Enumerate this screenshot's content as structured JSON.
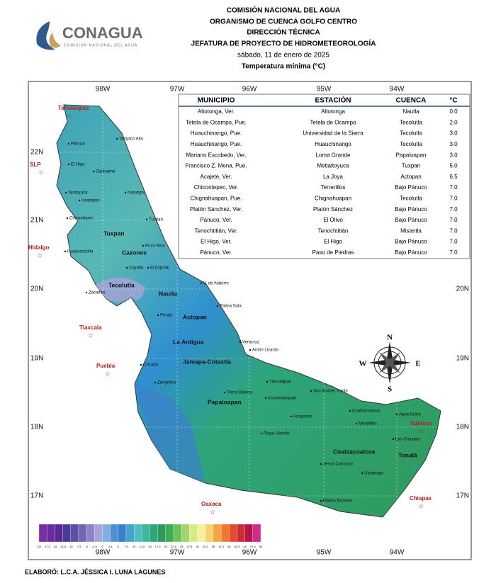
{
  "header": {
    "logo": "CONAGUA",
    "logo_sub": "COMISION NACIONAL DEL AGUA",
    "lines": [
      "COMISIÓN NACIONAL DEL AGUA",
      "ORGANISMO DE CUENCA GOLFO CENTRO",
      "DIRECCIÓN TÉCNICA",
      "JEFATURA DE PROYECTO DE HIDROMETEOROLOGÍA",
      "sábado, 11 de enero de 2025",
      "Temperatura mínima (°C)"
    ]
  },
  "table": {
    "columns": [
      "MUNICIPIO",
      "ESTACIÓN",
      "CUENCA",
      "°C"
    ],
    "rows": [
      [
        "Altotonga, Ver.",
        "Altotonga",
        "Nautla",
        "0.0"
      ],
      [
        "Tetela de Ocampo, Pue.",
        "Tetela de Ocampo",
        "Tecolutla",
        "2.0"
      ],
      [
        "Huauchinango, Pue.",
        "Universidad de la Sierra",
        "Tecolutla",
        "3.0"
      ],
      [
        "Huauchinango, Pue.",
        "Huauchinango",
        "Tecolutla",
        "3.0"
      ],
      [
        "Mariano Escobedo, Ver.",
        "Loma Grande",
        "Papaloapan",
        "3.0"
      ],
      [
        "Francisco Z. Mena, Pue.",
        "Metlaltoyuca",
        "Tuxpan",
        "5.0"
      ],
      [
        "Acajete, Ver.",
        "La Joya",
        "Actopan",
        "6.5"
      ],
      [
        "Chicontepec, Ver.",
        "Terrerillos",
        "Bajo Pánuco",
        "7.0"
      ],
      [
        "Chignahuapan, Pue.",
        "Chignahuapan",
        "Tecolutla",
        "7.0"
      ],
      [
        "Platón Sánchez, Ver.",
        "Platón Sánchez",
        "Bajo Pánuco",
        "7.0"
      ],
      [
        "Pánuco, Ver.",
        "El Olivo",
        "Bajo Pánuco",
        "7.0"
      ],
      [
        "Tenochtitlán, Ver.",
        "Tenochtitlán",
        "Misantla",
        "7.0"
      ],
      [
        "El Higo, Ver.",
        "El Higo",
        "Bajo Pánuco",
        "7.0"
      ],
      [
        "Pánuco, Ver.",
        "Paso de Piedras",
        "Bajo Pánuco",
        "7.0"
      ]
    ]
  },
  "map": {
    "lon_labels": [
      "98W",
      "97W",
      "96W",
      "95W",
      "94W"
    ],
    "lat_labels": [
      "22N",
      "21N",
      "20N",
      "19N",
      "18N",
      "17N"
    ],
    "compass": [
      "N",
      "S",
      "E",
      "W"
    ],
    "states": [
      "Tamaulipas",
      "SLP",
      "Hidalgo",
      "Tlaxcala",
      "Puebla",
      "Oaxaca",
      "Chiapas",
      "Tabasco"
    ],
    "basins": [
      "Tuxpan",
      "Cazones",
      "Tecolutla",
      "Nautla",
      "Actopan",
      "La Antigua",
      "Jamapa-Cotaxtla",
      "Papaloapan",
      "Coatzacoalcos",
      "Tonalá"
    ],
    "places": [
      "Tampico Alto",
      "Pánuco",
      "El Higo",
      "Ozuluama",
      "Tantoyuca",
      "Naranjos",
      "Ixcatepec",
      "Chicontepec",
      "Tuxpan",
      "Huayacocotla",
      "Poza Rica",
      "Coyutla",
      "El Espinal",
      "V. de Alatorre",
      "Palma Sola",
      "Veracruz",
      "Antón Lizardo",
      "Tlacotalpan",
      "Cosamaloapan",
      "San Andrés Tuxtla",
      "Coatzacoalcos",
      "Minatitlán",
      "Agua Dulce",
      "Las Choapas",
      "Jesús Carranza",
      "Uxpanapa",
      "Matías Romero",
      "Orizaba",
      "Zongolica",
      "Tierra Blanca",
      "Playa Vicente",
      "Acayucan",
      "Zacatlán",
      "Perote"
    ]
  },
  "legend": {
    "ticks": [
      -20,
      -17.5,
      -15,
      -12.5,
      -10,
      -7.5,
      -5,
      -2.5,
      0,
      2.5,
      5,
      7.5,
      10,
      12.5,
      15,
      17.5,
      20,
      22.5,
      25,
      27.5,
      30,
      32.5,
      35,
      37.5,
      40,
      42.5,
      45,
      47.5,
      50
    ],
    "colors": [
      "#7b2fa6",
      "#6a2c9c",
      "#5a2a92",
      "#4b3a96",
      "#5d4fa6",
      "#7464b4",
      "#8c84c4",
      "#a8a4d4",
      "#7fb0e0",
      "#4f8fd6",
      "#3d7fcf",
      "#4aa0c9",
      "#4fc0c0",
      "#3fb59c",
      "#2ea57a",
      "#2f9a5a",
      "#3fae4f",
      "#6cc25a",
      "#a2d66a",
      "#d8ea86",
      "#f4f0a0",
      "#f6d26a",
      "#f4a440",
      "#ef7830",
      "#e44a2a",
      "#cf2a38",
      "#b0184a",
      "#d02a90"
    ]
  },
  "footer": "ELABORÓ: L.C.A. JÉSSICA I. LUNA LAGUNES"
}
